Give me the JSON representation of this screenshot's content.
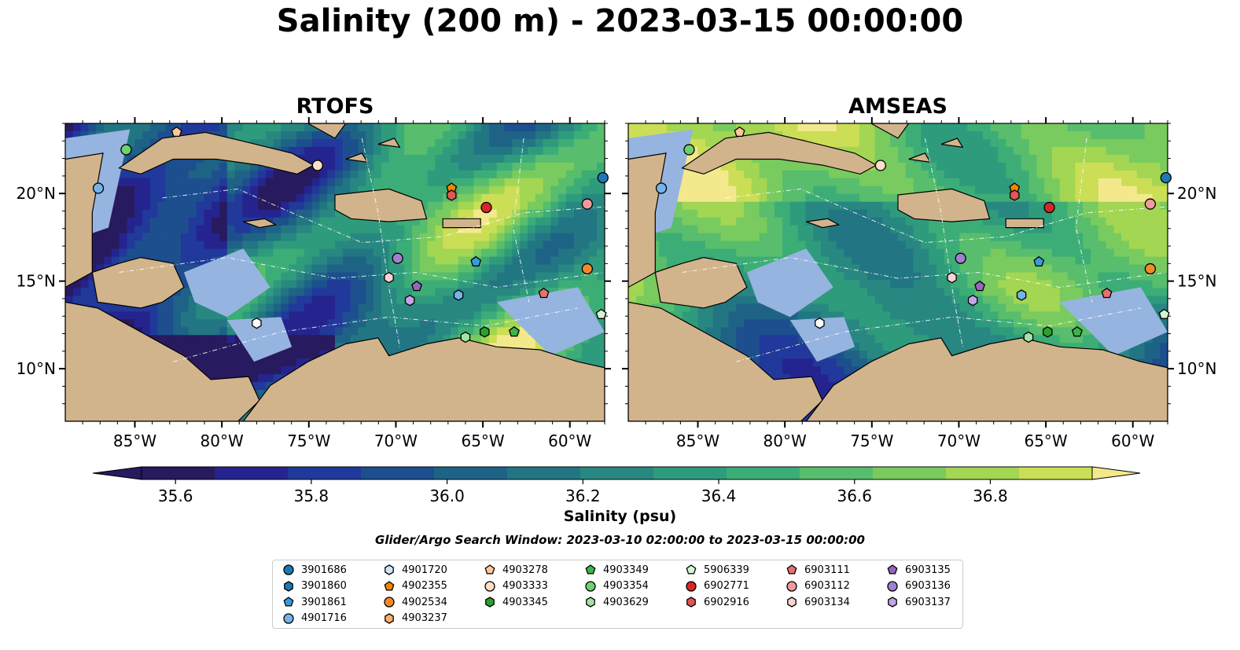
{
  "figure": {
    "title": "Salinity (200 m) - 2023-03-15 00:00:00",
    "colorbar_label": "Salinity (psu)",
    "search_window": "Glider/Argo Search Window: 2023-03-10 02:00:00 to 2023-03-15 00:00:00",
    "colors": {
      "land": "#d2b48c",
      "shallow_water": "#96b4e0",
      "colormap": [
        "#281a5e",
        "#25248f",
        "#21399a",
        "#1d4f8e",
        "#1e6386",
        "#227683",
        "#288881",
        "#2f9b7d",
        "#3dad77",
        "#58bd6c",
        "#79cb5f",
        "#a2d653",
        "#cbde56",
        "#f3e98c"
      ]
    },
    "colorbar_ticks": [
      "35.6",
      "35.8",
      "36.0",
      "36.2",
      "36.4",
      "36.6",
      "36.8"
    ]
  },
  "chart_data": [
    {
      "type": "heatmap",
      "title": "RTOFS",
      "variable": "Salinity",
      "units": "psu",
      "depth": "200 m",
      "xlim": [
        -89,
        -58
      ],
      "ylim": [
        7,
        24
      ],
      "xticks": [
        "85°W",
        "80°W",
        "75°W",
        "70°W",
        "65°W",
        "60°W"
      ],
      "yticks": [
        "10°N",
        "15°N",
        "20°N"
      ],
      "color_range": [
        35.5,
        37.0
      ]
    },
    {
      "type": "heatmap",
      "title": "AMSEAS",
      "variable": "Salinity",
      "units": "psu",
      "depth": "200 m",
      "xlim": [
        -89,
        -58
      ],
      "ylim": [
        7,
        24
      ],
      "xticks": [
        "85°W",
        "80°W",
        "75°W",
        "70°W",
        "65°W",
        "60°W"
      ],
      "yticks": [
        "10°N",
        "15°N",
        "20°N"
      ],
      "color_range": [
        35.5,
        37.0
      ]
    }
  ],
  "platforms": [
    {
      "id": "3901686",
      "marker": "circle",
      "color": "#1f77b4",
      "lon": -58.1,
      "lat": 20.9
    },
    {
      "id": "3901860",
      "marker": "hexagon",
      "color": "#1f77b4"
    },
    {
      "id": "3901861",
      "marker": "pentagon",
      "color": "#3a9ad9",
      "lon": -65.4,
      "lat": 16.1
    },
    {
      "id": "4901716",
      "marker": "circle",
      "color": "#74b3e8",
      "lon": -87.1,
      "lat": 20.3
    },
    {
      "id": "4901720",
      "marker": "hexagon",
      "color": "#cfe5f7"
    },
    {
      "id": "4902355",
      "marker": "pentagon",
      "color": "#f28500",
      "lon": -66.8,
      "lat": 20.3
    },
    {
      "id": "4902534",
      "marker": "circle",
      "color": "#f5892a",
      "lon": -59.0,
      "lat": 15.7
    },
    {
      "id": "4903237",
      "marker": "hexagon",
      "color": "#fbae6b"
    },
    {
      "id": "4903278",
      "marker": "pentagon",
      "color": "#fdc899",
      "lon": -82.6,
      "lat": 23.5
    },
    {
      "id": "4903333",
      "marker": "circle",
      "color": "#fde0c6",
      "lon": -74.5,
      "lat": 21.6
    },
    {
      "id": "4903345",
      "marker": "hexagon",
      "color": "#2ca02c",
      "lon": -64.9,
      "lat": 12.1
    },
    {
      "id": "4903349",
      "marker": "pentagon",
      "color": "#3cb44b",
      "lon": -63.2,
      "lat": 12.1
    },
    {
      "id": "4903354",
      "marker": "circle",
      "color": "#6fd06f",
      "lon": -85.5,
      "lat": 22.5
    },
    {
      "id": "4903629",
      "marker": "hexagon",
      "color": "#a4e3a4",
      "lon": -66.0,
      "lat": 11.8
    },
    {
      "id": "5906339",
      "marker": "pentagon",
      "color": "#d3f5d3",
      "lon": -58.2,
      "lat": 13.1
    },
    {
      "id": "6902771",
      "marker": "circle",
      "color": "#d62728",
      "lon": -64.8,
      "lat": 19.2
    },
    {
      "id": "6902916",
      "marker": "hexagon",
      "color": "#e15656",
      "lon": -66.8,
      "lat": 19.9
    },
    {
      "id": "6903111",
      "marker": "pentagon",
      "color": "#e87070",
      "lon": -61.5,
      "lat": 14.3
    },
    {
      "id": "6903112",
      "marker": "circle",
      "color": "#f19a9a",
      "lon": -59.0,
      "lat": 19.4
    },
    {
      "id": "6903134",
      "marker": "hexagon",
      "color": "#fbd2d2",
      "lon": -70.4,
      "lat": 15.2
    },
    {
      "id": "6903135",
      "marker": "pentagon",
      "color": "#9467bd",
      "lon": -68.8,
      "lat": 14.7
    },
    {
      "id": "6903136",
      "marker": "circle",
      "color": "#a17fd1",
      "lon": -69.9,
      "lat": 16.3
    },
    {
      "id": "6903137",
      "marker": "hexagon",
      "color": "#c3a5e3",
      "lon": -69.2,
      "lat": 13.9
    }
  ],
  "extra_markers": [
    {
      "marker": "hexagon",
      "color": "#ffffff",
      "lon": -78.0,
      "lat": 12.6
    },
    {
      "marker": "hexagon",
      "color": "#74b3e8",
      "lon": -66.4,
      "lat": 14.2
    }
  ]
}
